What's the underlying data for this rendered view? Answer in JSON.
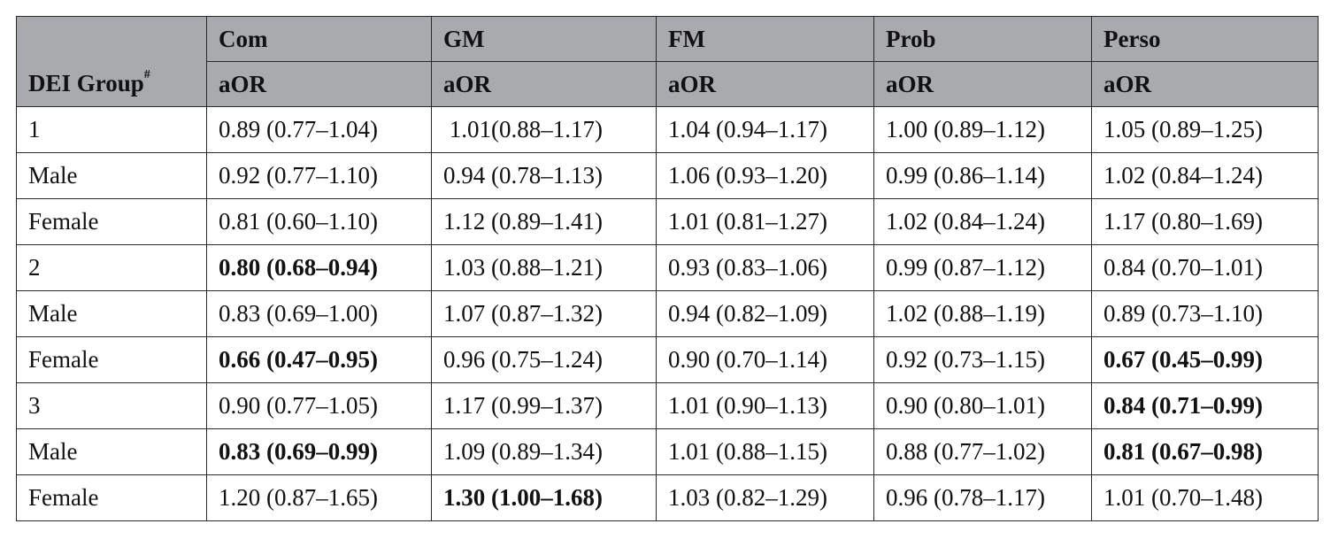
{
  "table": {
    "group_header": "DEI Group",
    "group_header_sup": "#",
    "columns": [
      {
        "name": "Com",
        "sub": "aOR"
      },
      {
        "name": "GM",
        "sub": "aOR"
      },
      {
        "name": "FM",
        "sub": "aOR"
      },
      {
        "name": "Prob",
        "sub": "aOR"
      },
      {
        "name": "Perso",
        "sub": "aOR"
      }
    ],
    "rows": [
      {
        "label": "1",
        "cells": [
          {
            "text": "0.89 (0.77–1.04)",
            "bold": false
          },
          {
            "text": " 1.01(0.88–1.17)",
            "bold": false
          },
          {
            "text": "1.04 (0.94–1.17)",
            "bold": false
          },
          {
            "text": "1.00 (0.89–1.12)",
            "bold": false
          },
          {
            "text": "1.05 (0.89–1.25)",
            "bold": false
          }
        ]
      },
      {
        "label": "Male",
        "cells": [
          {
            "text": "0.92 (0.77–1.10)",
            "bold": false
          },
          {
            "text": "0.94 (0.78–1.13)",
            "bold": false
          },
          {
            "text": "1.06 (0.93–1.20)",
            "bold": false
          },
          {
            "text": "0.99 (0.86–1.14)",
            "bold": false
          },
          {
            "text": "1.02 (0.84–1.24)",
            "bold": false
          }
        ]
      },
      {
        "label": "Female",
        "cells": [
          {
            "text": "0.81 (0.60–1.10)",
            "bold": false
          },
          {
            "text": "1.12 (0.89–1.41)",
            "bold": false
          },
          {
            "text": "1.01 (0.81–1.27)",
            "bold": false
          },
          {
            "text": "1.02 (0.84–1.24)",
            "bold": false
          },
          {
            "text": "1.17 (0.80–1.69)",
            "bold": false
          }
        ]
      },
      {
        "label": "2",
        "cells": [
          {
            "text": "0.80 (0.68–0.94)",
            "bold": true
          },
          {
            "text": "1.03 (0.88–1.21)",
            "bold": false
          },
          {
            "text": "0.93 (0.83–1.06)",
            "bold": false
          },
          {
            "text": "0.99 (0.87–1.12)",
            "bold": false
          },
          {
            "text": "0.84 (0.70–1.01)",
            "bold": false
          }
        ]
      },
      {
        "label": "Male",
        "cells": [
          {
            "text": "0.83 (0.69–1.00)",
            "bold": false
          },
          {
            "text": "1.07 (0.87–1.32)",
            "bold": false
          },
          {
            "text": "0.94 (0.82–1.09)",
            "bold": false
          },
          {
            "text": "1.02 (0.88–1.19)",
            "bold": false
          },
          {
            "text": "0.89 (0.73–1.10)",
            "bold": false
          }
        ]
      },
      {
        "label": "Female",
        "cells": [
          {
            "text": "0.66 (0.47–0.95)",
            "bold": true
          },
          {
            "text": "0.96 (0.75–1.24)",
            "bold": false
          },
          {
            "text": "0.90 (0.70–1.14)",
            "bold": false
          },
          {
            "text": "0.92 (0.73–1.15)",
            "bold": false
          },
          {
            "text": "0.67 (0.45–0.99)",
            "bold": true
          }
        ]
      },
      {
        "label": "3",
        "cells": [
          {
            "text": "0.90 (0.77–1.05)",
            "bold": false
          },
          {
            "text": "1.17 (0.99–1.37)",
            "bold": false
          },
          {
            "text": "1.01 (0.90–1.13)",
            "bold": false
          },
          {
            "text": "0.90 (0.80–1.01)",
            "bold": false
          },
          {
            "text": "0.84 (0.71–0.99)",
            "bold": true
          }
        ]
      },
      {
        "label": "Male",
        "cells": [
          {
            "text": "0.83 (0.69–0.99)",
            "bold": true
          },
          {
            "text": "1.09 (0.89–1.34)",
            "bold": false
          },
          {
            "text": "1.01 (0.88–1.15)",
            "bold": false
          },
          {
            "text": "0.88 (0.77–1.02)",
            "bold": false
          },
          {
            "text": "0.81 (0.67–0.98)",
            "bold": true
          }
        ]
      },
      {
        "label": "Female",
        "cells": [
          {
            "text": "1.20 (0.87–1.65)",
            "bold": false
          },
          {
            "text": "1.30 (1.00–1.68)",
            "bold": true
          },
          {
            "text": "1.03 (0.82–1.29)",
            "bold": false
          },
          {
            "text": "0.96 (0.78–1.17)",
            "bold": false
          },
          {
            "text": "1.01 (0.70–1.48)",
            "bold": false
          }
        ]
      }
    ]
  }
}
